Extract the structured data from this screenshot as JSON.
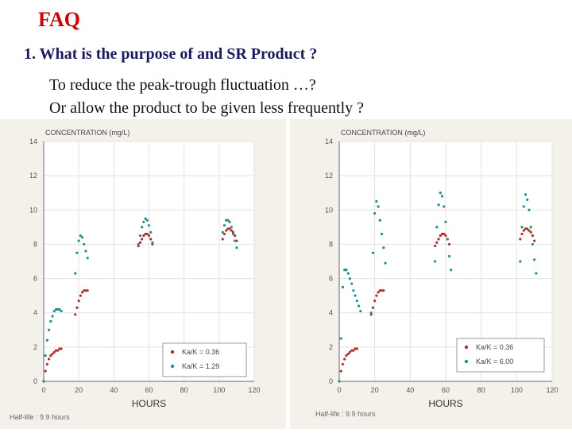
{
  "page": {
    "title": "FAQ",
    "question": "1.  What is the purpose of and SR Product ?",
    "answer_line1": "To reduce the peak-trough fluctuation …?",
    "answer_line2": "Or allow the product to be given less frequently ?"
  },
  "colors": {
    "title": "#cc0000",
    "series_red": "#b03030",
    "series_teal": "#1f8f8f"
  },
  "chart_data": [
    {
      "type": "scatter",
      "title": "CONCENTRATION (mg/L)",
      "xlabel": "HOURS",
      "ylabel": "",
      "footer": "Half-life : 9.9 hours",
      "xlim": [
        0,
        120
      ],
      "ylim": [
        0,
        14
      ],
      "xticks": [
        0,
        20,
        40,
        60,
        80,
        100,
        120
      ],
      "yticks": [
        0,
        2,
        4,
        6,
        8,
        10,
        12,
        14
      ],
      "legend": "bottom-right",
      "series": [
        {
          "name": "Ka/K = 0.36",
          "color": "#b03030",
          "x": [
            0,
            1,
            2,
            3,
            4,
            5,
            6,
            7,
            8,
            9,
            10,
            18,
            19,
            20,
            21,
            22,
            23,
            24,
            25,
            54,
            55,
            56,
            57,
            58,
            59,
            60,
            61,
            62,
            102,
            103,
            104,
            105,
            106,
            107,
            108,
            109,
            110
          ],
          "y": [
            0,
            0.6,
            1.0,
            1.3,
            1.5,
            1.6,
            1.7,
            1.8,
            1.8,
            1.9,
            1.9,
            3.9,
            4.3,
            4.7,
            5.0,
            5.2,
            5.3,
            5.3,
            5.3,
            7.9,
            8.1,
            8.3,
            8.5,
            8.6,
            8.6,
            8.5,
            8.3,
            8.0,
            8.3,
            8.6,
            8.8,
            8.9,
            8.9,
            8.8,
            8.7,
            8.5,
            8.2
          ]
        },
        {
          "name": "Ka/K = 1.29",
          "color": "#1f8f8f",
          "x": [
            0,
            1,
            2,
            3,
            4,
            5,
            6,
            7,
            8,
            9,
            10,
            18,
            19,
            20,
            21,
            22,
            23,
            24,
            25,
            54,
            55,
            56,
            57,
            58,
            59,
            60,
            61,
            62,
            102,
            103,
            104,
            105,
            106,
            107,
            108,
            109,
            110
          ],
          "y": [
            0,
            1.5,
            2.4,
            3.0,
            3.5,
            3.8,
            4.1,
            4.2,
            4.2,
            4.2,
            4.1,
            6.3,
            7.5,
            8.2,
            8.5,
            8.4,
            8.0,
            7.6,
            7.2,
            8.0,
            8.5,
            9.0,
            9.3,
            9.5,
            9.4,
            9.1,
            8.7,
            8.1,
            8.7,
            9.1,
            9.4,
            9.4,
            9.3,
            9.0,
            8.6,
            8.2,
            7.8
          ]
        }
      ]
    },
    {
      "type": "scatter",
      "title": "CONCENTRATION (mg/L)",
      "xlabel": "HOURS",
      "ylabel": "",
      "footer": "Half-life : 9.9 hours",
      "xlim": [
        0,
        120
      ],
      "ylim": [
        0,
        14
      ],
      "xticks": [
        0,
        20,
        40,
        60,
        80,
        100,
        120
      ],
      "yticks": [
        0,
        2,
        4,
        6,
        8,
        10,
        12,
        14
      ],
      "legend": "bottom-right",
      "series": [
        {
          "name": "Ka/K = 0.36",
          "color": "#b03030",
          "x": [
            0,
            1,
            2,
            3,
            4,
            5,
            6,
            7,
            8,
            9,
            10,
            18,
            19,
            20,
            21,
            22,
            23,
            24,
            25,
            54,
            55,
            56,
            57,
            58,
            59,
            60,
            61,
            62,
            102,
            103,
            104,
            105,
            106,
            107,
            108,
            109,
            110
          ],
          "y": [
            0,
            0.6,
            1.0,
            1.3,
            1.5,
            1.6,
            1.7,
            1.8,
            1.8,
            1.9,
            1.9,
            3.9,
            4.3,
            4.7,
            5.0,
            5.2,
            5.3,
            5.3,
            5.3,
            7.9,
            8.1,
            8.3,
            8.5,
            8.6,
            8.6,
            8.5,
            8.3,
            8.0,
            8.3,
            8.6,
            8.8,
            8.9,
            8.9,
            8.8,
            8.7,
            8.5,
            8.2
          ]
        },
        {
          "name": "Ka/K = 6.00",
          "color": "#1f8f8f",
          "x": [
            0,
            1,
            2,
            3,
            4,
            5,
            6,
            7,
            8,
            9,
            10,
            11,
            12,
            18,
            19,
            20,
            21,
            22,
            23,
            24,
            25,
            26,
            54,
            55,
            56,
            57,
            58,
            59,
            60,
            61,
            62,
            63,
            102,
            103,
            104,
            105,
            106,
            107,
            108,
            109,
            110,
            111
          ],
          "y": [
            0,
            2.5,
            5.5,
            6.5,
            6.5,
            6.3,
            6.0,
            5.7,
            5.3,
            5.0,
            4.7,
            4.4,
            4.1,
            4.0,
            7.5,
            9.8,
            10.5,
            10.2,
            9.4,
            8.6,
            7.8,
            6.9,
            7.0,
            9.0,
            10.3,
            11.0,
            10.8,
            10.2,
            9.3,
            8.3,
            7.3,
            6.5,
            7.0,
            9.0,
            10.2,
            10.9,
            10.6,
            10.0,
            9.0,
            8.0,
            7.1,
            6.3
          ]
        }
      ]
    }
  ]
}
